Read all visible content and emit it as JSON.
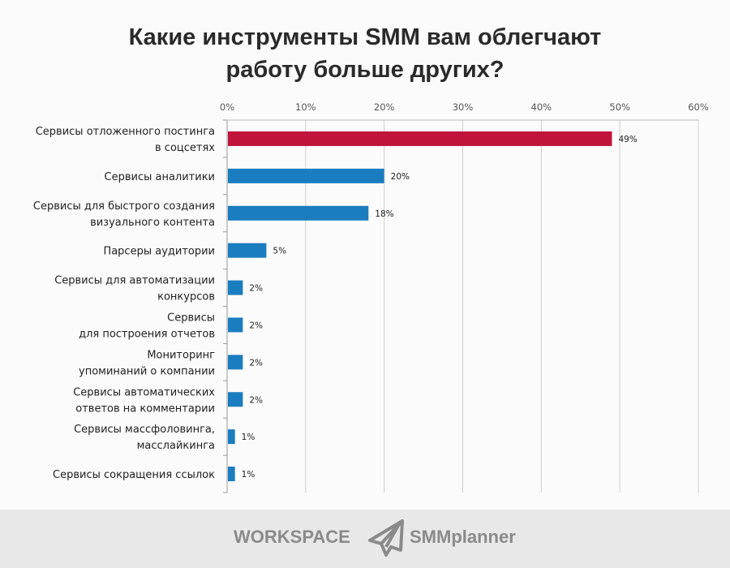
{
  "chart_data": {
    "type": "bar",
    "orientation": "horizontal",
    "title": "Какие инструменты SMM вам облегчают\nработу больше других?",
    "categories": [
      "Сервисы отложенного постинга\nв соцсетях",
      "Сервисы аналитики",
      "Сервисы для быстрого создания\nвизуального контента",
      "Парсеры аудитории",
      "Сервисы для автоматизации\nконкурсов",
      "Сервисы\nдля построения отчетов",
      "Мониторинг\nупоминаний о компании",
      "Сервисы автоматических\nответов на комментарии",
      "Сервисы массфоловинга,\nмасслайкинга",
      "Сервисы сокращения ссылок"
    ],
    "values": [
      49,
      20,
      18,
      5,
      2,
      2,
      2,
      2,
      1,
      1
    ],
    "data_labels": [
      "49%",
      "20%",
      "18%",
      "5%",
      "2%",
      "2%",
      "2%",
      "2%",
      "1%",
      "1%"
    ],
    "xlim": [
      0,
      60
    ],
    "x_ticks": [
      "0%",
      "10%",
      "20%",
      "30%",
      "40%",
      "50%",
      "60%"
    ],
    "x_axis_position": "top",
    "grid": true,
    "colors": {
      "highlight": "#c0143c",
      "default": "#1a7dc0"
    }
  },
  "footer": {
    "logo_left": "WORKSPACE",
    "logo_right": "SMMplanner"
  }
}
